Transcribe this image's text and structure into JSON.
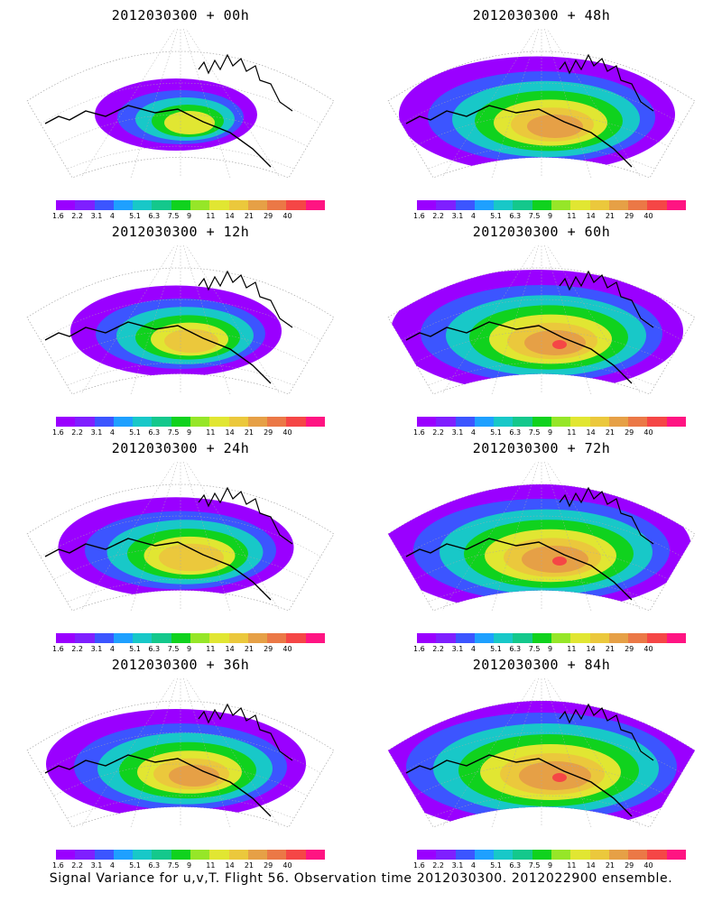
{
  "panels": [
    {
      "title": "2012030300 + 00h",
      "spread": 0.0
    },
    {
      "title": "2012030300 + 48h",
      "spread": 0.7
    },
    {
      "title": "2012030300 + 12h",
      "spread": 0.3
    },
    {
      "title": "2012030300 + 60h",
      "spread": 0.8
    },
    {
      "title": "2012030300 + 24h",
      "spread": 0.45
    },
    {
      "title": "2012030300 + 72h",
      "spread": 0.9
    },
    {
      "title": "2012030300 + 36h",
      "spread": 0.6
    },
    {
      "title": "2012030300 + 84h",
      "spread": 1.0
    }
  ],
  "colorbar": {
    "colors": [
      "#9a00ff",
      "#7f1fff",
      "#3c55ff",
      "#1ea0ff",
      "#18c8c8",
      "#14c88c",
      "#10d21e",
      "#96e628",
      "#e1e632",
      "#ebc83c",
      "#e6a046",
      "#eb7846",
      "#f54646",
      "#ff1482"
    ],
    "labels": [
      "1.6",
      "2.2",
      "3.1",
      "4",
      "5.1",
      "6.3",
      "7.5",
      "9",
      "11",
      "14",
      "21",
      "29",
      "40",
      ""
    ]
  },
  "footer": "Signal Variance for u,v,T. Flight 56. Observation time 2012030300. 2012022900 ensemble."
}
